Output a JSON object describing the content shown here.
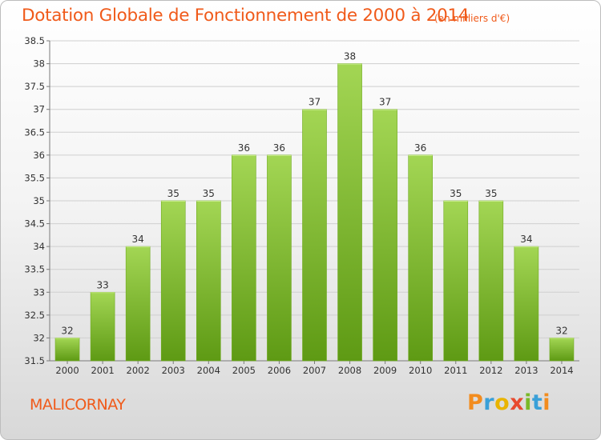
{
  "header": {
    "title": "Dotation Globale de Fonctionnement de 2000 à 2014",
    "unit": "(en milliers d'€)"
  },
  "footer": {
    "town": "MALICORNAY",
    "logo_text": "Proxiti"
  },
  "colors": {
    "title": "#f05a1a",
    "bar_light": "#a3d654",
    "bar_dark": "#5e9a14",
    "axis": "#7a7a7a",
    "grid": "#cfcfcf"
  },
  "chart_data": {
    "type": "bar",
    "title": "Dotation Globale de Fonctionnement de 2000 à 2014",
    "xlabel": "",
    "ylabel": "",
    "categories": [
      "2000",
      "2001",
      "2002",
      "2003",
      "2004",
      "2005",
      "2006",
      "2007",
      "2008",
      "2009",
      "2010",
      "2011",
      "2012",
      "2013",
      "2014"
    ],
    "values": [
      32,
      33,
      34,
      35,
      35,
      36,
      36,
      37,
      38,
      37,
      36,
      35,
      35,
      34,
      32
    ],
    "data_labels": [
      "32",
      "33",
      "34",
      "35",
      "35",
      "36",
      "36",
      "37",
      "38",
      "37",
      "36",
      "35",
      "35",
      "34",
      "32"
    ],
    "ylim": [
      31.5,
      38.5
    ],
    "yticks": [
      "31.5",
      "32",
      "32.5",
      "33",
      "33.5",
      "34",
      "34.5",
      "35",
      "35.5",
      "36",
      "36.5",
      "37",
      "37.5",
      "38",
      "38.5"
    ],
    "grid": true
  }
}
